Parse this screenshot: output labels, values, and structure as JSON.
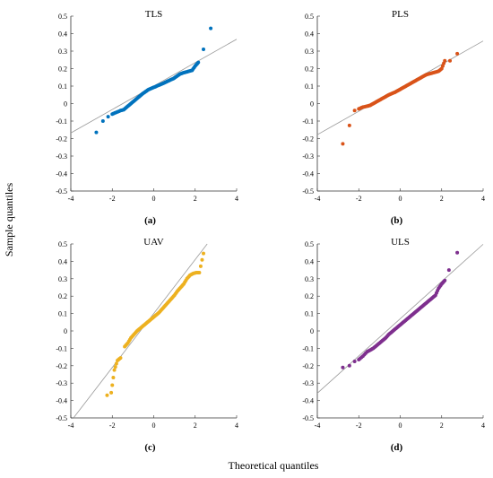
{
  "figure": {
    "xlabel": "Theoretical quantiles",
    "ylabel": "Sample quantiles"
  },
  "chart_data": [
    {
      "type": "scatter",
      "title": "TLS",
      "panel_label": "(a)",
      "color": "#0072BD",
      "xlim": [
        -4,
        4
      ],
      "ylim": [
        -0.5,
        0.5
      ],
      "xticks": [
        "-4",
        "-2",
        "0",
        "2",
        "4"
      ],
      "yticks": [
        "0.5",
        "0.4",
        "0.3",
        "0.2",
        "0.1",
        "0",
        "-0.1",
        "-0.2",
        "-0.3",
        "-0.4",
        "-0.5"
      ],
      "reference_line": {
        "slope": 0.067,
        "intercept": 0.1
      },
      "points": [
        [
          -2.77,
          -0.165
        ],
        [
          -2.45,
          -0.1
        ],
        [
          -2.2,
          -0.075
        ],
        [
          -2.0,
          -0.06
        ],
        [
          -1.8,
          -0.05
        ],
        [
          -1.6,
          -0.04
        ],
        [
          -1.45,
          -0.035
        ],
        [
          -1.3,
          -0.02
        ],
        [
          -1.15,
          -0.005
        ],
        [
          -1.0,
          0.01
        ],
        [
          -0.85,
          0.025
        ],
        [
          -0.7,
          0.04
        ],
        [
          -0.55,
          0.055
        ],
        [
          -0.4,
          0.068
        ],
        [
          -0.25,
          0.08
        ],
        [
          -0.1,
          0.088
        ],
        [
          0.05,
          0.095
        ],
        [
          0.2,
          0.103
        ],
        [
          0.35,
          0.11
        ],
        [
          0.5,
          0.118
        ],
        [
          0.65,
          0.127
        ],
        [
          0.8,
          0.135
        ],
        [
          0.95,
          0.143
        ],
        [
          1.1,
          0.155
        ],
        [
          1.25,
          0.168
        ],
        [
          1.4,
          0.175
        ],
        [
          1.55,
          0.18
        ],
        [
          1.7,
          0.185
        ],
        [
          1.85,
          0.19
        ],
        [
          2.0,
          0.215
        ],
        [
          2.15,
          0.235
        ],
        [
          2.4,
          0.31
        ],
        [
          2.75,
          0.43
        ]
      ]
    },
    {
      "type": "scatter",
      "title": "PLS",
      "panel_label": "(b)",
      "color": "#D95319",
      "xlim": [
        -4,
        4
      ],
      "ylim": [
        -0.5,
        0.5
      ],
      "xticks": [
        "-4",
        "-2",
        "0",
        "2",
        "4"
      ],
      "yticks": [
        "0.5",
        "0.4",
        "0.3",
        "0.2",
        "0.1",
        "0",
        "-0.1",
        "-0.2",
        "-0.3",
        "-0.4",
        "-0.5"
      ],
      "reference_line": {
        "slope": 0.067,
        "intercept": 0.09
      },
      "points": [
        [
          -2.77,
          -0.23
        ],
        [
          -2.45,
          -0.125
        ],
        [
          -2.2,
          -0.04
        ],
        [
          -2.0,
          -0.03
        ],
        [
          -1.8,
          -0.02
        ],
        [
          -1.6,
          -0.015
        ],
        [
          -1.45,
          -0.01
        ],
        [
          -1.3,
          0.0
        ],
        [
          -1.15,
          0.01
        ],
        [
          -1.0,
          0.02
        ],
        [
          -0.85,
          0.03
        ],
        [
          -0.7,
          0.04
        ],
        [
          -0.55,
          0.05
        ],
        [
          -0.4,
          0.058
        ],
        [
          -0.25,
          0.065
        ],
        [
          -0.1,
          0.075
        ],
        [
          0.05,
          0.085
        ],
        [
          0.2,
          0.095
        ],
        [
          0.35,
          0.105
        ],
        [
          0.5,
          0.115
        ],
        [
          0.65,
          0.125
        ],
        [
          0.8,
          0.135
        ],
        [
          0.95,
          0.145
        ],
        [
          1.1,
          0.155
        ],
        [
          1.25,
          0.165
        ],
        [
          1.4,
          0.17
        ],
        [
          1.55,
          0.175
        ],
        [
          1.7,
          0.18
        ],
        [
          1.85,
          0.185
        ],
        [
          2.0,
          0.2
        ],
        [
          2.15,
          0.245
        ],
        [
          2.4,
          0.245
        ],
        [
          2.75,
          0.285
        ]
      ]
    },
    {
      "type": "scatter",
      "title": "UAV",
      "panel_label": "(c)",
      "color": "#EDB120",
      "xlim": [
        -4,
        4
      ],
      "ylim": [
        -0.5,
        0.5
      ],
      "xticks": [
        "-4",
        "-2",
        "0",
        "2",
        "4"
      ],
      "yticks": [
        "0.5",
        "0.4",
        "0.3",
        "0.2",
        "0.1",
        "0",
        "-0.1",
        "-0.2",
        "-0.3",
        "-0.4",
        "-0.5"
      ],
      "reference_line": {
        "slope": 0.155,
        "intercept": 0.1
      },
      "points": [
        [
          -2.25,
          -0.37
        ],
        [
          -2.05,
          -0.355
        ],
        [
          -1.9,
          -0.225
        ],
        [
          -1.75,
          -0.17
        ],
        [
          -1.6,
          -0.155
        ],
        [
          -1.4,
          -0.09
        ],
        [
          -1.25,
          -0.07
        ],
        [
          -1.1,
          -0.04
        ],
        [
          -0.95,
          -0.02
        ],
        [
          -0.8,
          0.0
        ],
        [
          -0.65,
          0.015
        ],
        [
          -0.5,
          0.03
        ],
        [
          -0.35,
          0.045
        ],
        [
          -0.2,
          0.06
        ],
        [
          -0.05,
          0.075
        ],
        [
          0.1,
          0.09
        ],
        [
          0.25,
          0.105
        ],
        [
          0.4,
          0.125
        ],
        [
          0.55,
          0.145
        ],
        [
          0.7,
          0.165
        ],
        [
          0.85,
          0.185
        ],
        [
          1.0,
          0.205
        ],
        [
          1.15,
          0.23
        ],
        [
          1.3,
          0.25
        ],
        [
          1.45,
          0.27
        ],
        [
          1.6,
          0.3
        ],
        [
          1.75,
          0.32
        ],
        [
          1.9,
          0.33
        ],
        [
          2.05,
          0.335
        ],
        [
          2.2,
          0.335
        ],
        [
          2.4,
          0.445
        ]
      ]
    },
    {
      "type": "scatter",
      "title": "ULS",
      "panel_label": "(d)",
      "color": "#7E2F8E",
      "xlim": [
        -4,
        4
      ],
      "ylim": [
        -0.5,
        0.5
      ],
      "xticks": [
        "-4",
        "-2",
        "0",
        "2",
        "4"
      ],
      "yticks": [
        "0.5",
        "0.4",
        "0.3",
        "0.2",
        "0.1",
        "0",
        "-0.1",
        "-0.2",
        "-0.3",
        "-0.4",
        "-0.5"
      ],
      "reference_line": {
        "slope": 0.107,
        "intercept": 0.07
      },
      "points": [
        [
          -2.77,
          -0.21
        ],
        [
          -2.45,
          -0.2
        ],
        [
          -2.2,
          -0.175
        ],
        [
          -2.0,
          -0.165
        ],
        [
          -1.8,
          -0.145
        ],
        [
          -1.6,
          -0.12
        ],
        [
          -1.45,
          -0.11
        ],
        [
          -1.3,
          -0.1
        ],
        [
          -1.15,
          -0.085
        ],
        [
          -1.0,
          -0.07
        ],
        [
          -0.85,
          -0.055
        ],
        [
          -0.7,
          -0.04
        ],
        [
          -0.55,
          -0.02
        ],
        [
          -0.4,
          -0.005
        ],
        [
          -0.25,
          0.01
        ],
        [
          -0.1,
          0.025
        ],
        [
          0.05,
          0.04
        ],
        [
          0.2,
          0.055
        ],
        [
          0.35,
          0.07
        ],
        [
          0.5,
          0.085
        ],
        [
          0.65,
          0.1
        ],
        [
          0.8,
          0.115
        ],
        [
          0.95,
          0.13
        ],
        [
          1.1,
          0.145
        ],
        [
          1.25,
          0.16
        ],
        [
          1.4,
          0.175
        ],
        [
          1.55,
          0.19
        ],
        [
          1.7,
          0.205
        ],
        [
          1.85,
          0.245
        ],
        [
          2.0,
          0.27
        ],
        [
          2.15,
          0.29
        ],
        [
          2.35,
          0.35
        ],
        [
          2.75,
          0.45
        ]
      ]
    }
  ]
}
